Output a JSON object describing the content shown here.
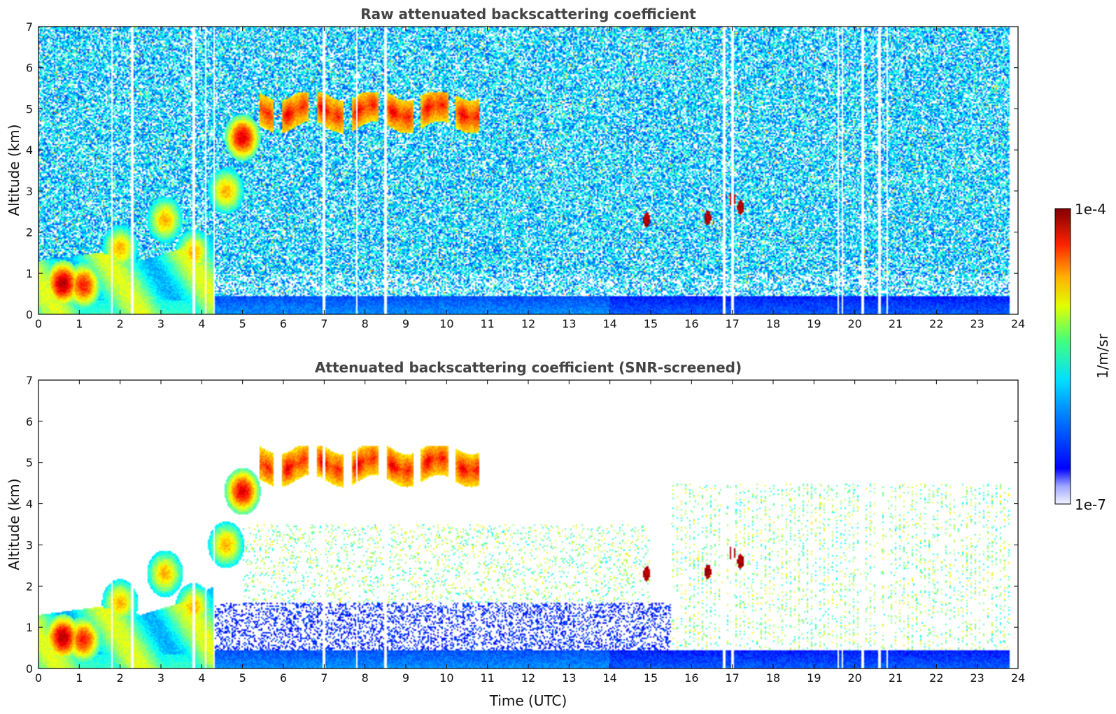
{
  "chart_data": [
    {
      "type": "heatmap",
      "title": "Raw attenuated backscattering coefficient",
      "xlabel": "",
      "ylabel": "Altitude (km)",
      "xlim": [
        0,
        24
      ],
      "ylim": [
        0,
        7
      ],
      "xticks": [
        "0",
        "1",
        "2",
        "3",
        "4",
        "5",
        "6",
        "7",
        "8",
        "9",
        "10",
        "11",
        "12",
        "13",
        "14",
        "15",
        "16",
        "17",
        "18",
        "19",
        "20",
        "21",
        "22",
        "23",
        "24"
      ],
      "yticks": [
        "0",
        "1",
        "2",
        "3",
        "4",
        "5",
        "6",
        "7"
      ],
      "data_end_time": 23.8,
      "screened": false
    },
    {
      "type": "heatmap",
      "title": "Attenuated backscattering coefficient (SNR-screened)",
      "xlabel": "Time (UTC)",
      "ylabel": "Altitude (km)",
      "xlim": [
        0,
        24
      ],
      "ylim": [
        0,
        7
      ],
      "xticks": [
        "0",
        "1",
        "2",
        "3",
        "4",
        "5",
        "6",
        "7",
        "8",
        "9",
        "10",
        "11",
        "12",
        "13",
        "14",
        "15",
        "16",
        "17",
        "18",
        "19",
        "20",
        "21",
        "22",
        "23",
        "24"
      ],
      "yticks": [
        "0",
        "1",
        "2",
        "3",
        "4",
        "5",
        "6",
        "7"
      ],
      "data_end_time": 23.8,
      "screened": true
    }
  ],
  "colorbar": {
    "label": "1/m/sr",
    "max_label": "1e-4",
    "min_label": "1e-7",
    "scale": "log",
    "min": 1e-07,
    "max": 0.0001,
    "colormap": "jet"
  },
  "features": {
    "boundary_layer": [
      [
        0,
        1.0
      ],
      [
        1.5,
        1.2
      ],
      [
        2.5,
        1.0
      ],
      [
        3.5,
        1.3
      ],
      [
        4.3,
        1.7
      ]
    ],
    "aerosol_plumes": [
      {
        "t": 0.6,
        "z": 0.75,
        "strength": 0.85
      },
      {
        "t": 1.1,
        "z": 0.7,
        "strength": 0.75
      },
      {
        "t": 2.0,
        "z": 1.6,
        "strength": 0.6
      },
      {
        "t": 3.1,
        "z": 2.3,
        "strength": 0.6
      },
      {
        "t": 3.8,
        "z": 1.5,
        "strength": 0.6
      },
      {
        "t": 4.6,
        "z": 3.0,
        "strength": 0.6
      },
      {
        "t": 5.0,
        "z": 4.3,
        "strength": 0.8
      }
    ],
    "cloud_layer": {
      "t_start": 5.4,
      "t_end": 10.8,
      "z_low": 4.4,
      "z_high": 5.4
    },
    "small_clouds": [
      {
        "t": 14.9,
        "z": 2.3
      },
      {
        "t": 16.4,
        "z": 2.35
      },
      {
        "t": 17.0,
        "z": 2.8
      },
      {
        "t": 17.2,
        "z": 2.6
      }
    ],
    "near_surface_top": 0.45,
    "gap_times": [
      1.8,
      2.3,
      3.8,
      4.1,
      4.3,
      7.0,
      7.8,
      8.5,
      16.8,
      17.0,
      19.6,
      19.7,
      20.2,
      20.6,
      20.8
    ]
  }
}
